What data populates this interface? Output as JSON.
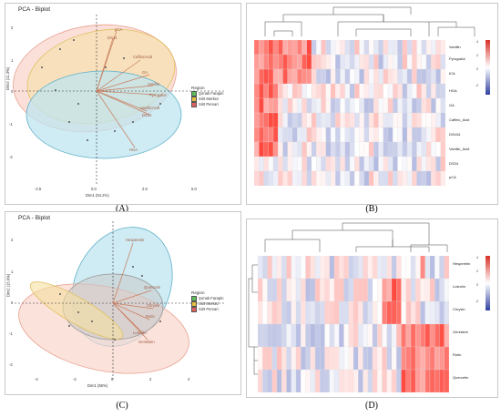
{
  "colors": {
    "green": "#5cbf5c",
    "yellow": "#e8c040",
    "red": "#e06060",
    "ell_blue": "#bfe6f0",
    "ell_yellow": "#f5e0a0",
    "ell_red": "#f9d6cc",
    "ell_grey": "#c8c8c8",
    "arrow": "#c87a5a",
    "hm_red": "#d73027",
    "hm_blue": "#3040a0"
  },
  "captions": {
    "a": "(A)",
    "b": "(B)",
    "c": "(C)",
    "d": "(D)"
  },
  "pcaA": {
    "title": "PCA - Biplot",
    "xlabel": "Dim1 (54.2%)",
    "ylabel": "Dim2 (11.3%)",
    "xticks": [
      "-2.5",
      "0.0",
      "2.5",
      "5.0"
    ],
    "yticks": [
      "2",
      "1",
      "0",
      "-1",
      "-2"
    ],
    "legend_title": "Region",
    "legend": [
      "Şırnak Farapin",
      "Siirt Merkez",
      "Siirt Pervari"
    ],
    "vars": [
      "pCA",
      "DS34",
      "CaffeicAcid",
      "GA",
      "Vanillin",
      "Pyrogallol",
      "VanillicAcid",
      "DS34",
      "HGA"
    ]
  },
  "pcaC": {
    "title": "PCA - Biplot",
    "xlabel": "Dim1 (55%)",
    "ylabel": "Dim2 (15.6%)",
    "xticks": [
      "-4",
      "-2",
      "0",
      "2",
      "4"
    ],
    "yticks": [
      "2",
      "1",
      "0",
      "-1",
      "-2"
    ],
    "legend_title": "Region",
    "legend": [
      "Şırnak Farapin",
      "Siirt Merkez",
      "Siirt Pervari"
    ],
    "vars": [
      "Hesperetin",
      "Quercetin",
      "Chrysin",
      "Rutin",
      "Luteolin",
      "Genistein"
    ]
  },
  "heatB": {
    "rows": [
      "Vanillin",
      "Pyrogallol",
      "tCA",
      "HGA",
      "GA",
      "Caffeic_Acid",
      "DS434",
      "Vanillic_Acid",
      "DS34",
      "pCA"
    ],
    "key": [
      "4",
      "2",
      "0",
      "-2"
    ]
  },
  "heatD": {
    "rows": [
      "Hesperetin",
      "Luteolin",
      "Chrysin",
      "Genistein",
      "Rutin",
      "Quercetin"
    ],
    "key": [
      "4",
      "2",
      "0",
      "-2"
    ]
  }
}
